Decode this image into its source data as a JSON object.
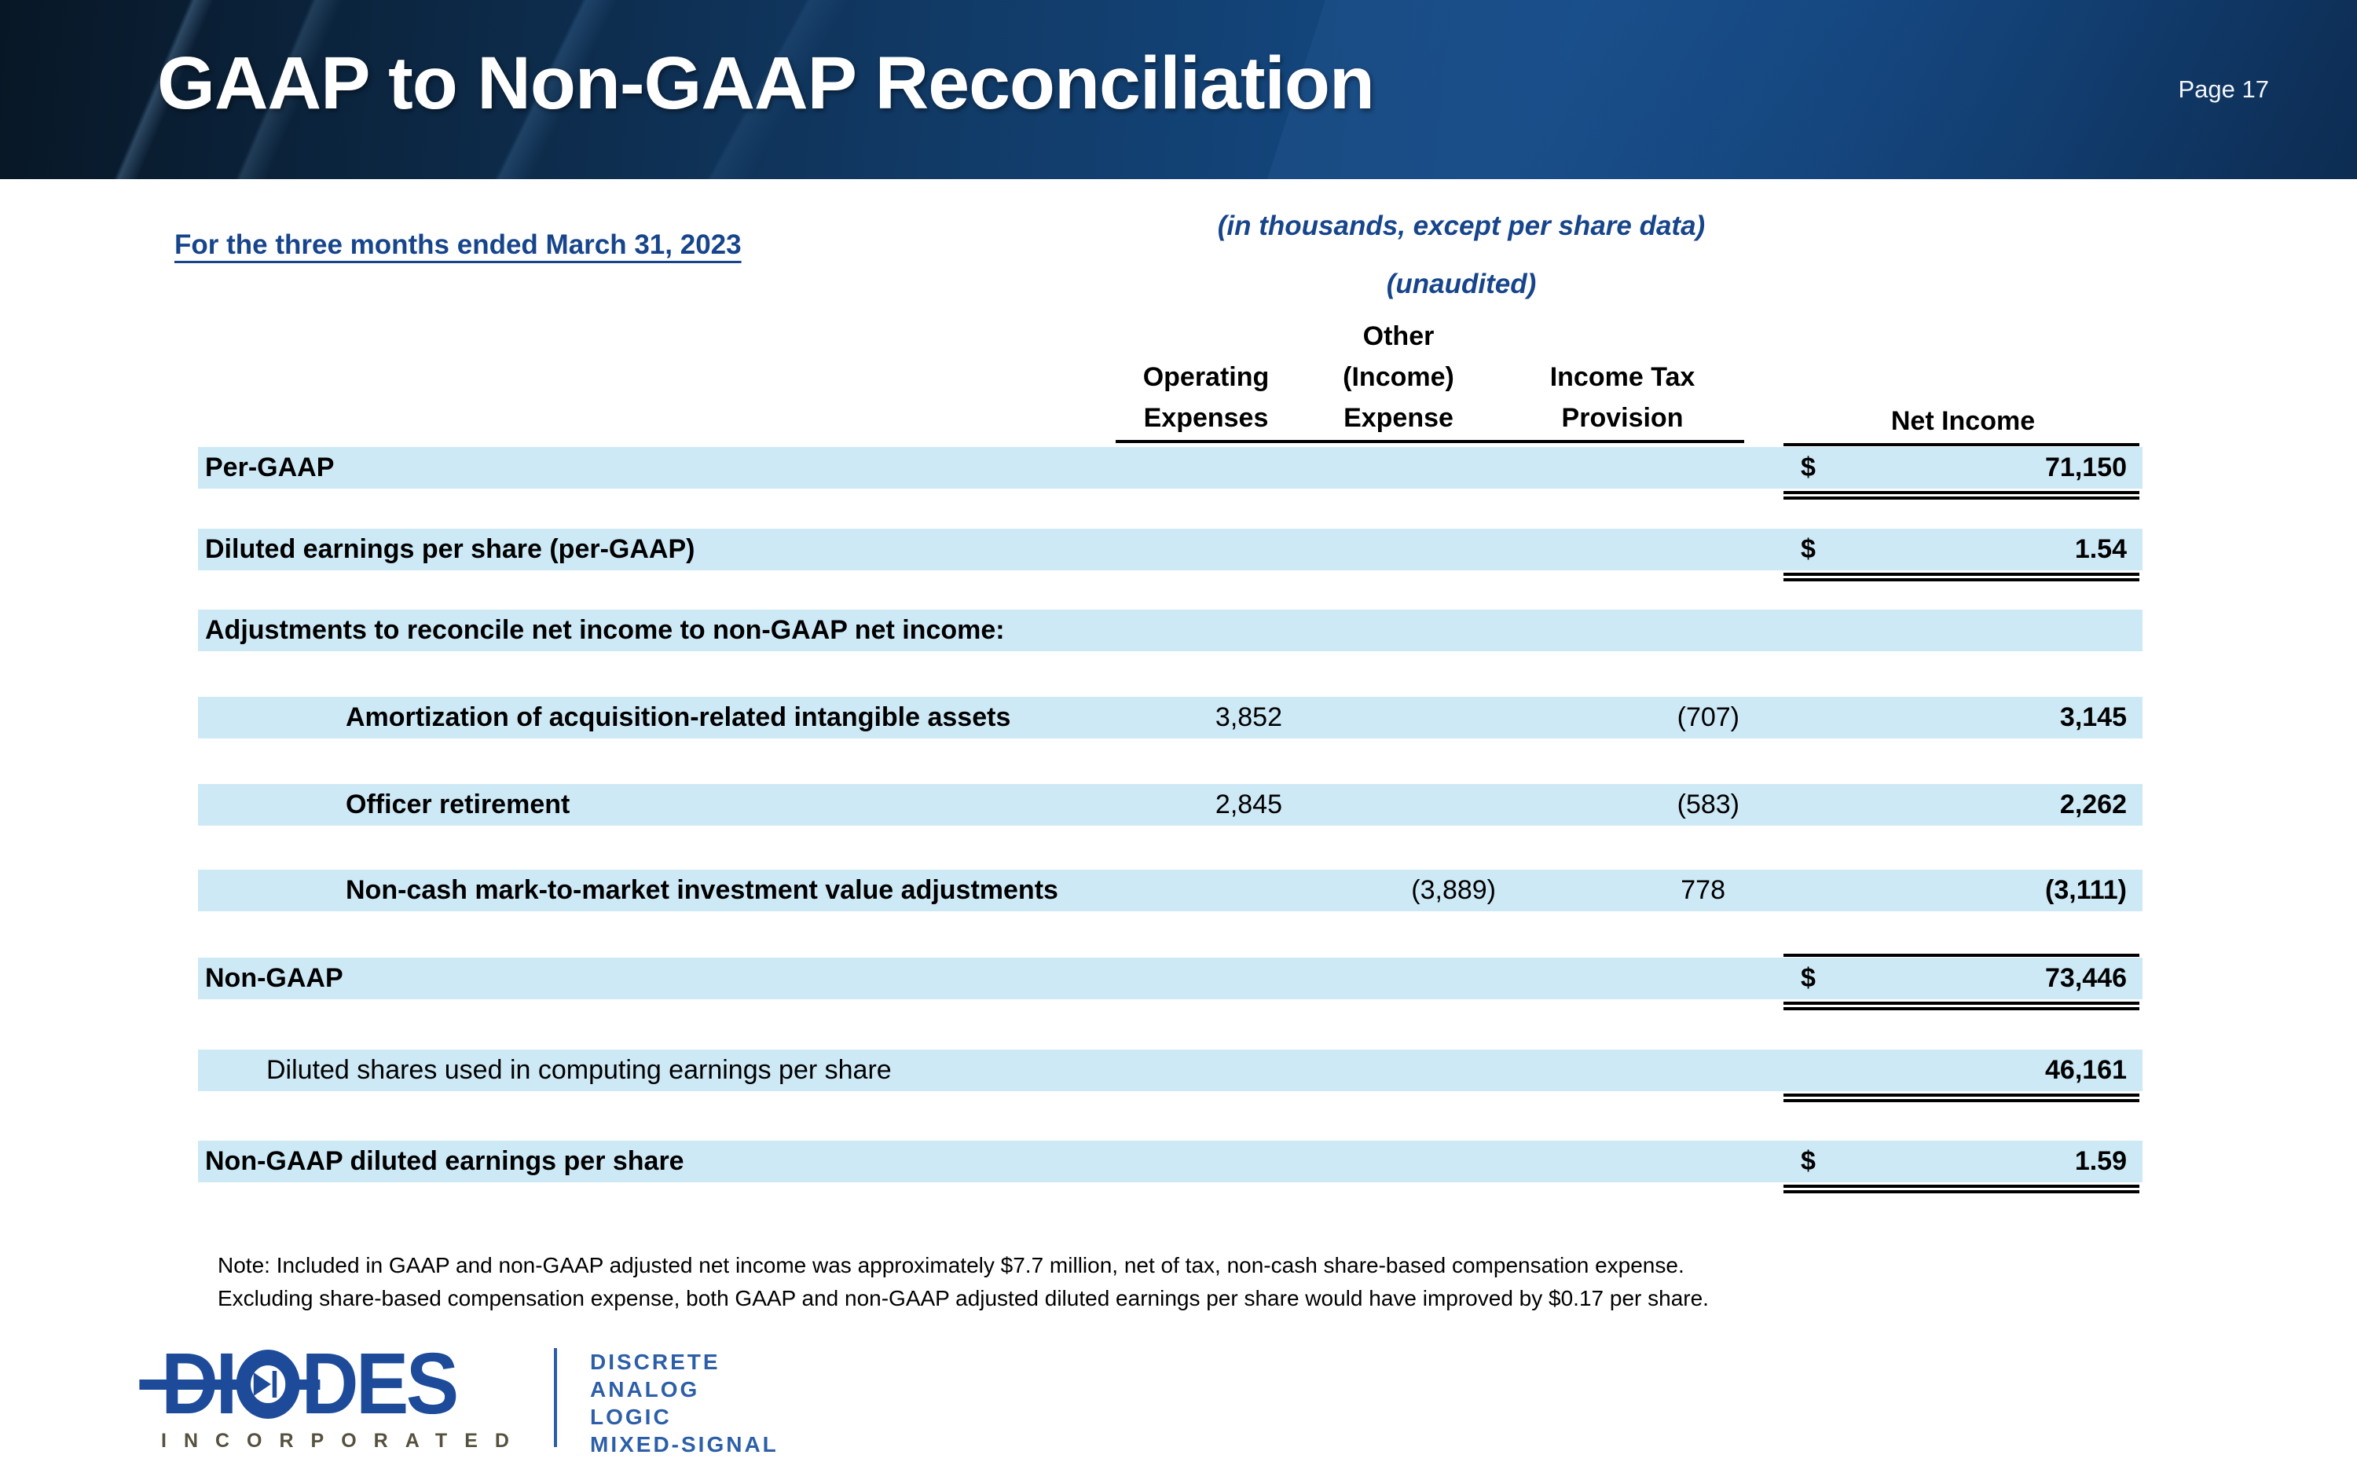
{
  "header": {
    "title": "GAAP to Non-GAAP Reconciliation",
    "page_label": "Page 17"
  },
  "subtitle": {
    "period": "For the three months ended March 31, 2023",
    "units_note": "(in thousands, except per share data)",
    "audit_note": "(unaudited)"
  },
  "table": {
    "col_op": [
      "Operating",
      "Expenses"
    ],
    "col_oi": [
      "Other",
      "(Income)",
      "Expense"
    ],
    "col_tax": [
      "Income Tax",
      "Provision"
    ],
    "col_net": [
      "Net Income"
    ],
    "rows": [
      {
        "label": "Per-GAAP",
        "op": "",
        "oi": "",
        "tax": "",
        "dollar": "$",
        "net": "71,150"
      },
      {
        "label": "Diluted earnings per share (per-GAAP)",
        "op": "",
        "oi": "",
        "tax": "",
        "dollar": "$",
        "net": "1.54"
      },
      {
        "label": "Adjustments to reconcile net income to non-GAAP net income:",
        "op": "",
        "oi": "",
        "tax": "",
        "dollar": "",
        "net": ""
      },
      {
        "label": "Amortization of acquisition-related intangible assets",
        "op": "3,852",
        "oi": "",
        "tax": "(707)",
        "dollar": "",
        "net": "3,145"
      },
      {
        "label": "Officer retirement",
        "op": "2,845",
        "oi": "",
        "tax": "(583)",
        "dollar": "",
        "net": "2,262"
      },
      {
        "label": "Non-cash mark-to-market investment value adjustments",
        "op": "",
        "oi": "(3,889)",
        "tax": "778",
        "dollar": "",
        "net": "(3,111)"
      },
      {
        "label": "Non-GAAP",
        "op": "",
        "oi": "",
        "tax": "",
        "dollar": "$",
        "net": "73,446"
      },
      {
        "label": "Diluted shares used in computing earnings per share",
        "op": "",
        "oi": "",
        "tax": "",
        "dollar": "",
        "net": "46,161"
      },
      {
        "label": "Non-GAAP diluted earnings per share",
        "op": "",
        "oi": "",
        "tax": "",
        "dollar": "$",
        "net": "1.59"
      }
    ]
  },
  "note": {
    "line1": "Note:  Included in GAAP and non-GAAP adjusted net income was approximately $7.7 million, net of tax, non-cash share-based compensation expense.",
    "line2": "Excluding share-based compensation expense, both GAAP and non-GAAP adjusted diluted earnings per share would have improved by $0.17 per share."
  },
  "logo": {
    "name_left": "DI",
    "name_right": "DES",
    "incorporated": "INCORPORATED",
    "tag1": "DISCRETE",
    "tag2": "ANALOG",
    "tag3": "LOGIC",
    "tag4": "MIXED-SIGNAL"
  },
  "colors": {
    "band_blue_dark": "#0c2743",
    "band_blue_light": "#16549b",
    "row_highlight": "#cde9f6",
    "subtitle_blue": "#17458c",
    "logo_blue": "#1d4b9a",
    "incorporated_gray": "#56503e"
  }
}
